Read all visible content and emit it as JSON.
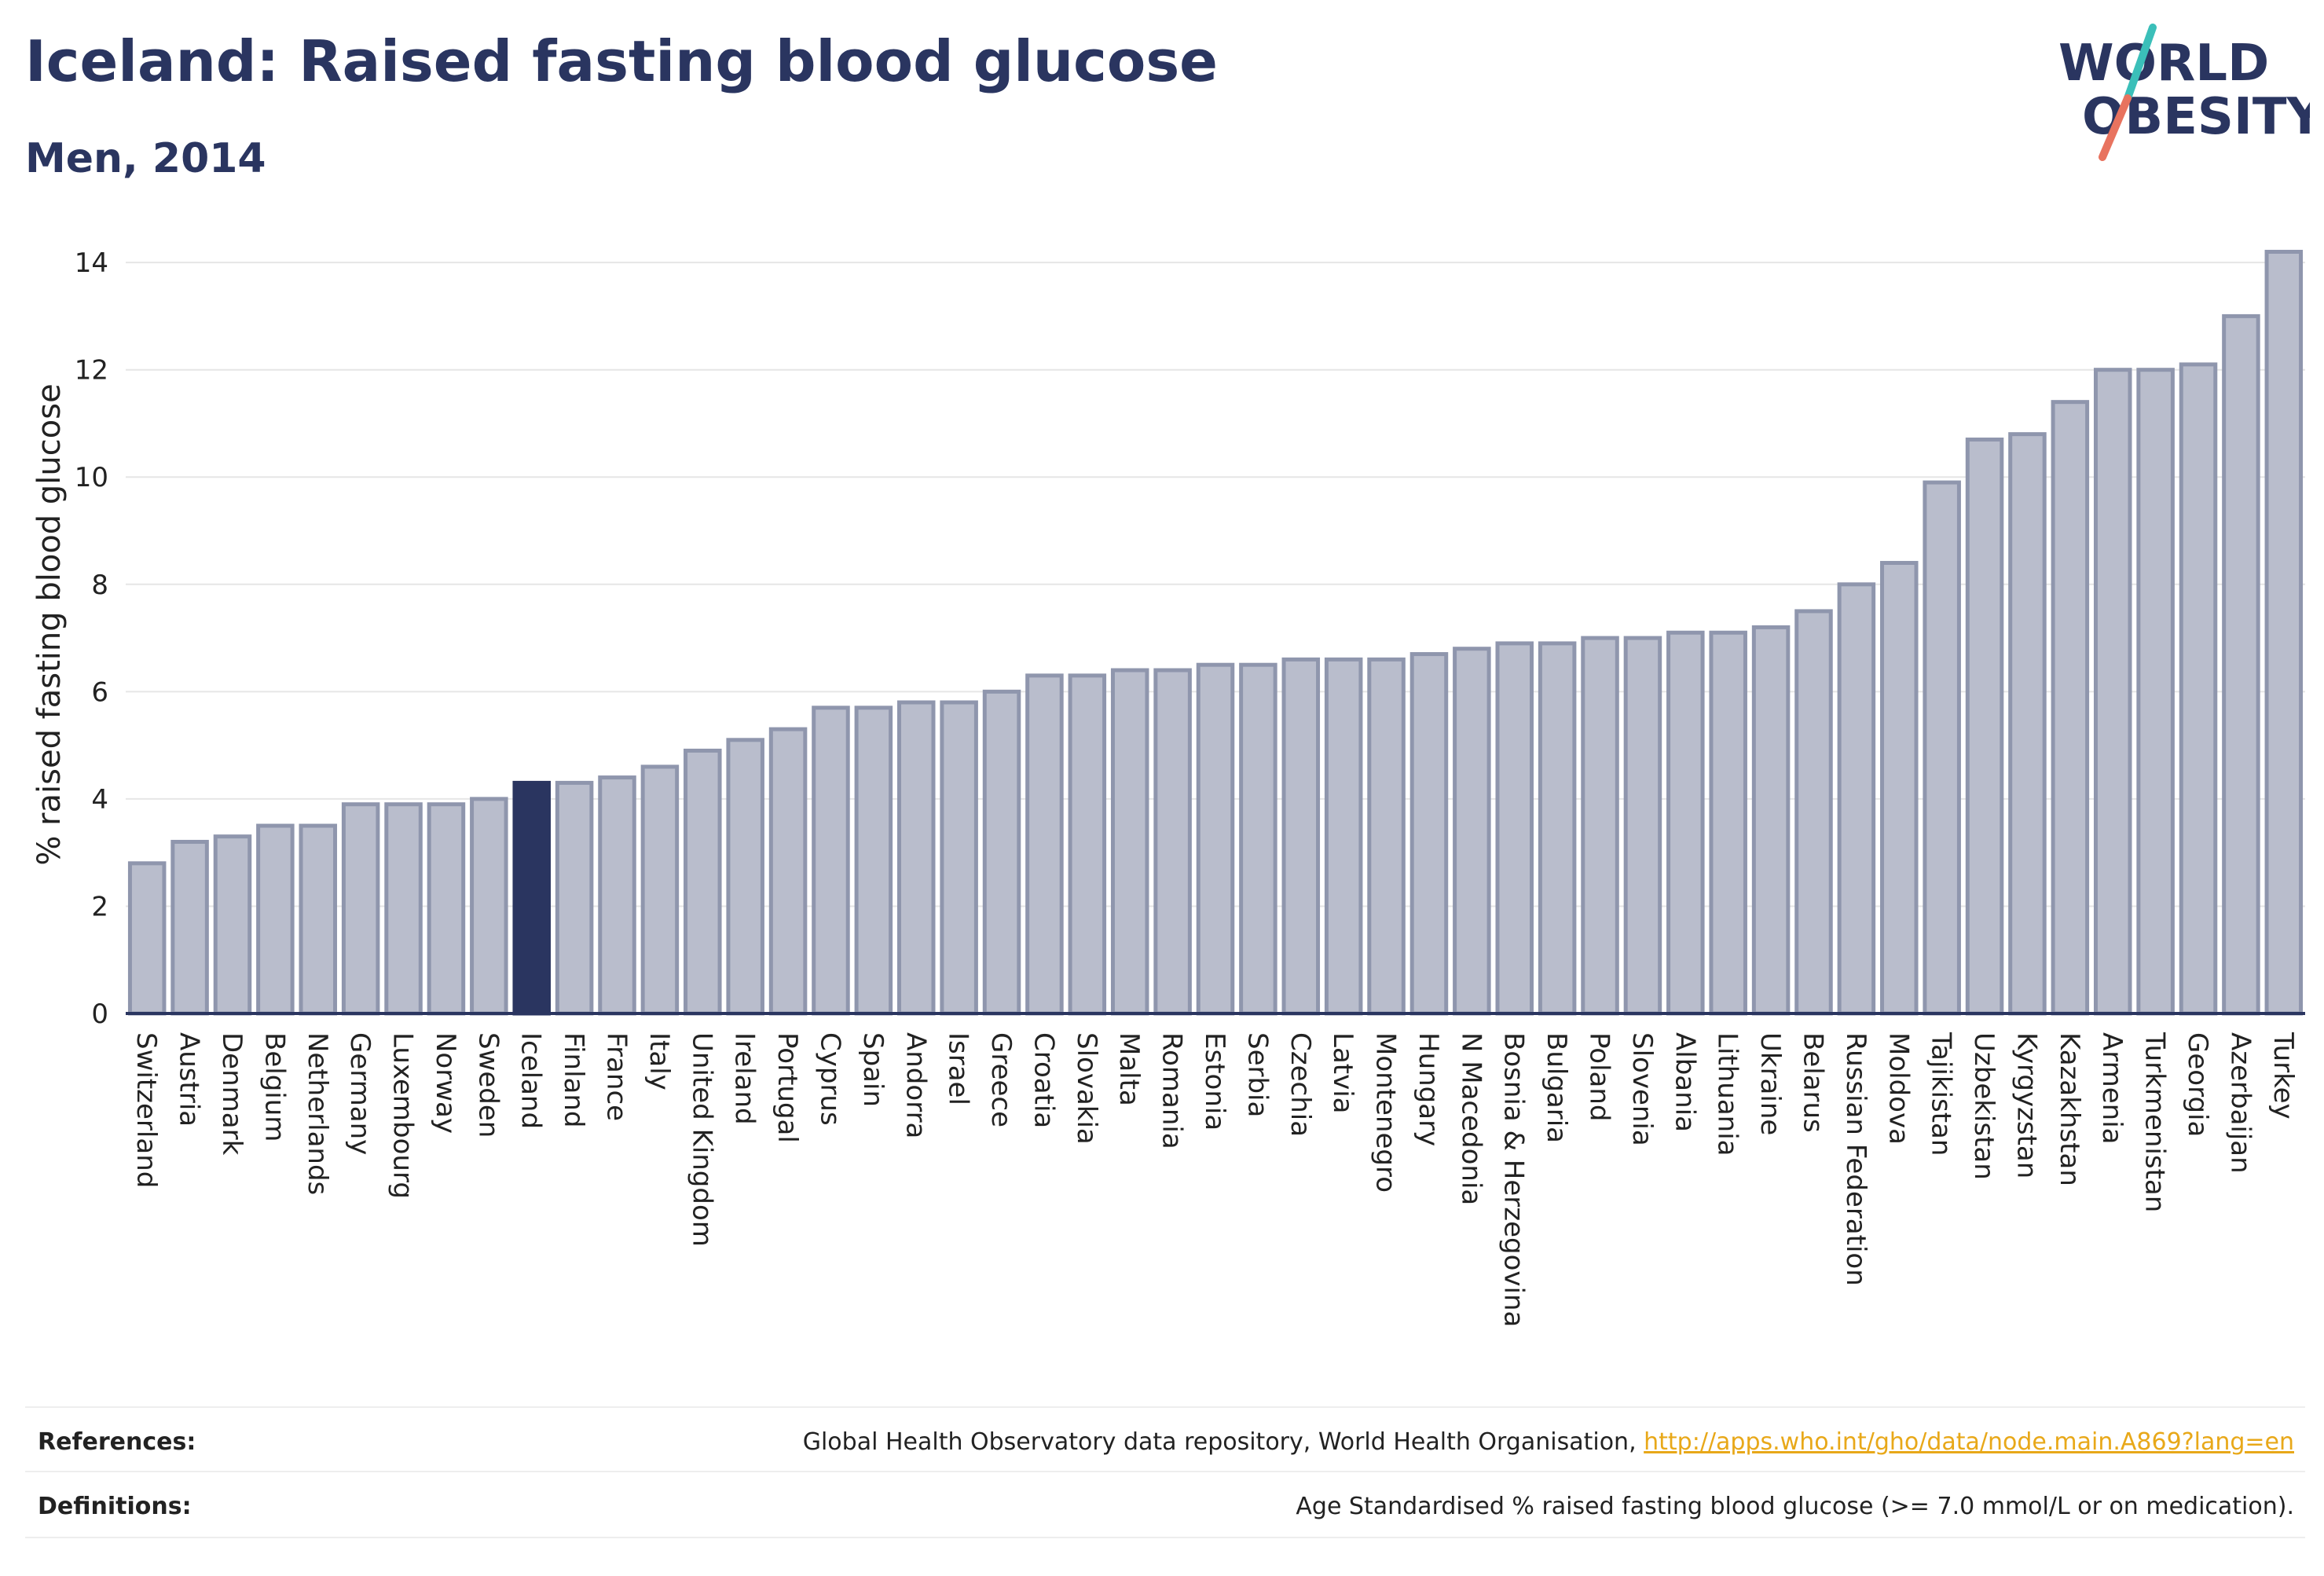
{
  "header": {
    "title": "Iceland: Raised fasting blood glucose",
    "subtitle": "Men, 2014"
  },
  "logo": {
    "line1": "WORLD",
    "line2": "OBESITY",
    "text_color": "#2a3560",
    "slash_colors": [
      "#3bbfb9",
      "#e8735f"
    ]
  },
  "chart_data": {
    "type": "bar",
    "ylabel": "% raised fasting blood glucose",
    "ylim": [
      0,
      14.5
    ],
    "yticks": [
      0,
      2,
      4,
      6,
      8,
      10,
      12,
      14
    ],
    "grid": true,
    "highlight": "Iceland",
    "colors": {
      "bar": "#b9bdcc",
      "bar_stroke": "#8f96ad",
      "highlight": "#2a3560",
      "axis": "#2a3560",
      "grid": "#e6e6e6"
    },
    "categories": [
      "Switzerland",
      "Austria",
      "Denmark",
      "Belgium",
      "Netherlands",
      "Germany",
      "Luxembourg",
      "Norway",
      "Sweden",
      "Iceland",
      "Finland",
      "France",
      "Italy",
      "United Kingdom",
      "Ireland",
      "Portugal",
      "Cyprus",
      "Spain",
      "Andorra",
      "Israel",
      "Greece",
      "Croatia",
      "Slovakia",
      "Malta",
      "Romania",
      "Estonia",
      "Serbia",
      "Czechia",
      "Latvia",
      "Montenegro",
      "Hungary",
      "N Macedonia",
      "Bosnia & Herzegovina",
      "Bulgaria",
      "Poland",
      "Slovenia",
      "Albania",
      "Lithuania",
      "Ukraine",
      "Belarus",
      "Russian Federation",
      "Moldova",
      "Tajikistan",
      "Uzbekistan",
      "Kyrgyzstan",
      "Kazakhstan",
      "Armenia",
      "Turkmenistan",
      "Georgia",
      "Azerbaijan",
      "Turkey"
    ],
    "values": [
      2.8,
      3.2,
      3.3,
      3.5,
      3.5,
      3.9,
      3.9,
      3.9,
      4.0,
      4.3,
      4.3,
      4.4,
      4.6,
      4.9,
      5.1,
      5.3,
      5.7,
      5.7,
      5.8,
      5.8,
      6.0,
      6.3,
      6.3,
      6.4,
      6.4,
      6.5,
      6.5,
      6.6,
      6.6,
      6.6,
      6.7,
      6.8,
      6.9,
      6.9,
      7.0,
      7.0,
      7.1,
      7.1,
      7.2,
      7.5,
      8.0,
      8.4,
      9.9,
      10.7,
      10.8,
      11.4,
      12.0,
      12.0,
      12.1,
      13.0,
      14.2
    ]
  },
  "footer": {
    "references_label": "References:",
    "references_text": "Global Health Observatory data repository, World Health Organisation, ",
    "references_link": "http://apps.who.int/gho/data/node.main.A869?lang=en",
    "definitions_label": "Definitions:",
    "definitions_text": "Age Standardised % raised fasting blood glucose (>= 7.0 mmol/L or on medication)."
  }
}
